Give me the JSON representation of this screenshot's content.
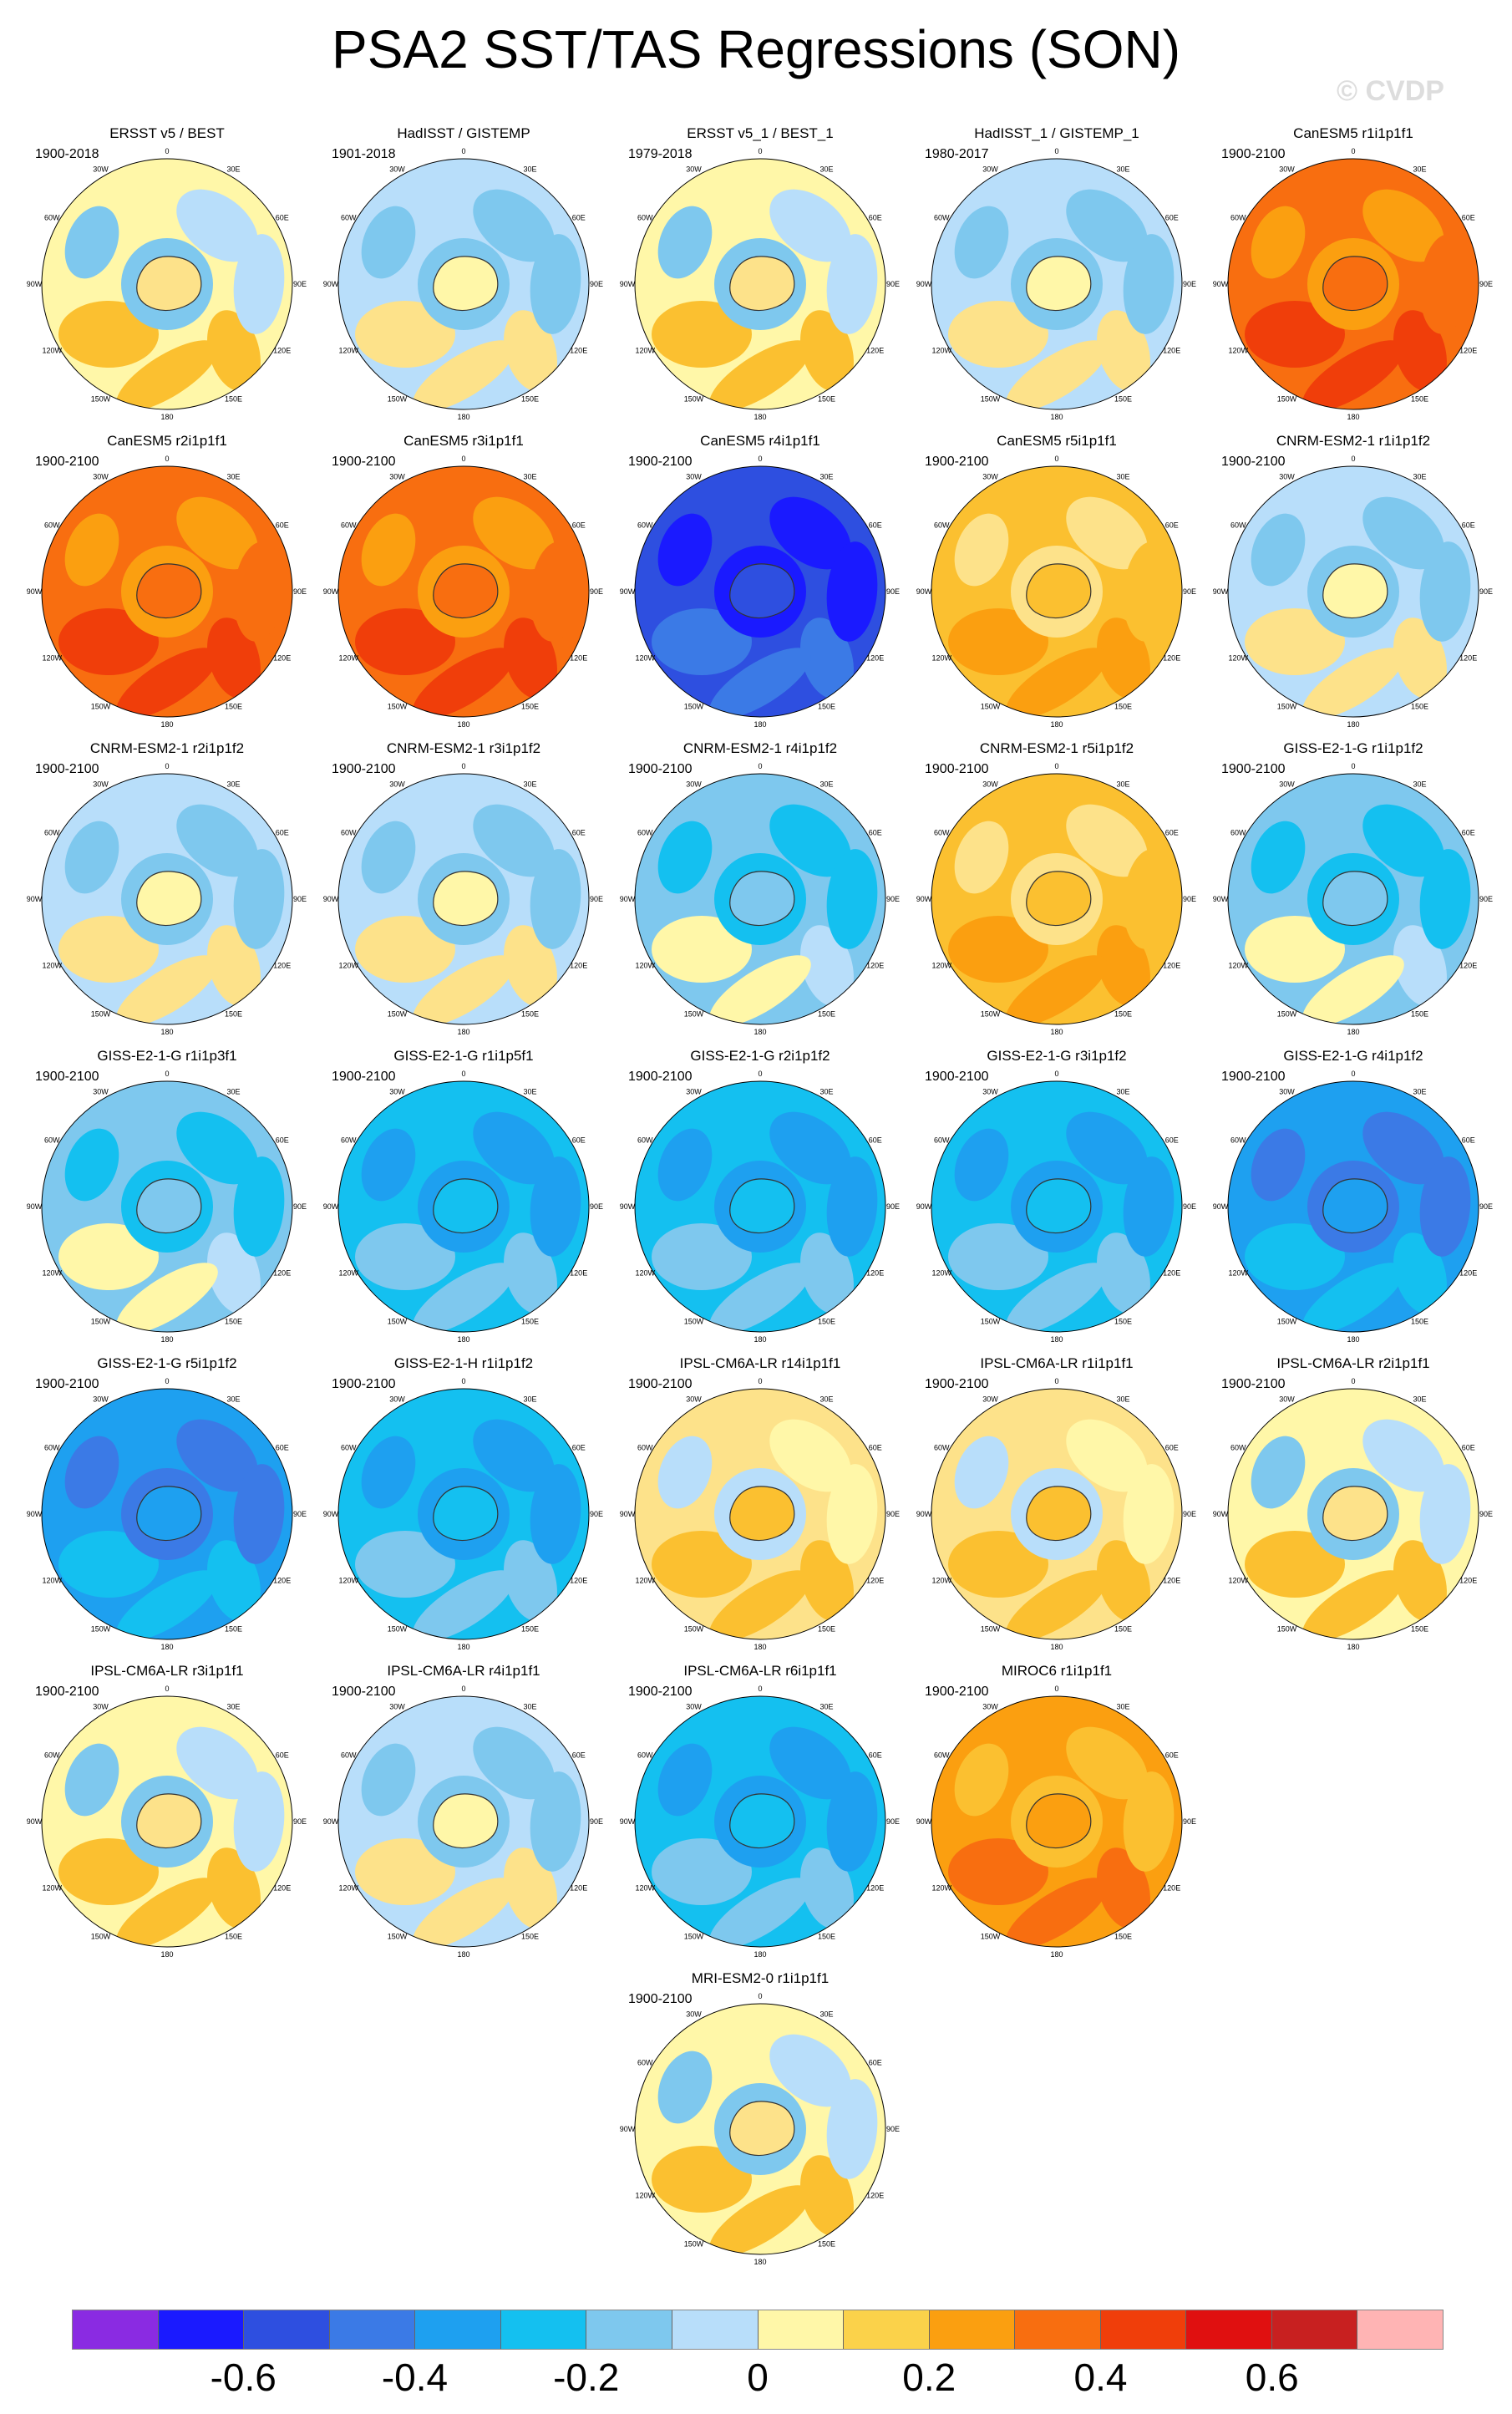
{
  "title": "PSA2 SST/TAS Regressions (SON)",
  "watermark": "© CVDP",
  "axis_labels": [
    "0",
    "30E",
    "60E",
    "90E",
    "120E",
    "150E",
    "180",
    "150W",
    "120W",
    "90W",
    "60W",
    "30W"
  ],
  "colors": {
    "-0.7": "#8a2be2",
    "-0.6": "#1a1aff",
    "-0.5": "#2e4fe0",
    "-0.4": "#3b7ae6",
    "-0.3": "#1ea0f0",
    "-0.2": "#14c0f0",
    "-0.1": "#7ec8ee",
    "0.0": "#b8defa",
    "0.05": "#fff7a8",
    "0.1": "#fde28a",
    "0.2": "#fbc030",
    "0.3": "#fb9f10",
    "0.4": "#f86e10",
    "0.5": "#f03e0a",
    "0.6": "#e01010",
    "0.7": "#c82020",
    "0.8": "#ffb4b4"
  },
  "panels": [
    {
      "title": "ERSST v5 / BEST",
      "years": "1900-2018",
      "value": 0.05
    },
    {
      "title": "HadISST / GISTEMP",
      "years": "1901-2018",
      "value": 0.0
    },
    {
      "title": "ERSST v5_1 / BEST_1",
      "years": "1979-2018",
      "value": 0.05
    },
    {
      "title": "HadISST_1 / GISTEMP_1",
      "years": "1980-2017",
      "value": 0.0
    },
    {
      "title": "CanESM5 r1i1p1f1",
      "years": "1900-2100",
      "value": 0.4
    },
    {
      "title": "CanESM5 r2i1p1f1",
      "years": "1900-2100",
      "value": 0.4
    },
    {
      "title": "CanESM5 r3i1p1f1",
      "years": "1900-2100",
      "value": 0.4
    },
    {
      "title": "CanESM5 r4i1p1f1",
      "years": "1900-2100",
      "value": -0.5
    },
    {
      "title": "CanESM5 r5i1p1f1",
      "years": "1900-2100",
      "value": 0.2
    },
    {
      "title": "CNRM-ESM2-1 r1i1p1f2",
      "years": "1900-2100",
      "value": 0.0
    },
    {
      "title": "CNRM-ESM2-1 r2i1p1f2",
      "years": "1900-2100",
      "value": 0.0
    },
    {
      "title": "CNRM-ESM2-1 r3i1p1f2",
      "years": "1900-2100",
      "value": 0.0
    },
    {
      "title": "CNRM-ESM2-1 r4i1p1f2",
      "years": "1900-2100",
      "value": -0.1
    },
    {
      "title": "CNRM-ESM2-1 r5i1p1f2",
      "years": "1900-2100",
      "value": 0.2
    },
    {
      "title": "GISS-E2-1-G r1i1p1f2",
      "years": "1900-2100",
      "value": -0.1
    },
    {
      "title": "GISS-E2-1-G r1i1p3f1",
      "years": "1900-2100",
      "value": -0.1
    },
    {
      "title": "GISS-E2-1-G r1i1p5f1",
      "years": "1900-2100",
      "value": -0.2
    },
    {
      "title": "GISS-E2-1-G r2i1p1f2",
      "years": "1900-2100",
      "value": -0.2
    },
    {
      "title": "GISS-E2-1-G r3i1p1f2",
      "years": "1900-2100",
      "value": -0.2
    },
    {
      "title": "GISS-E2-1-G r4i1p1f2",
      "years": "1900-2100",
      "value": -0.3
    },
    {
      "title": "GISS-E2-1-G r5i1p1f2",
      "years": "1900-2100",
      "value": -0.3
    },
    {
      "title": "GISS-E2-1-H r1i1p1f2",
      "years": "1900-2100",
      "value": -0.2
    },
    {
      "title": "IPSL-CM6A-LR r14i1p1f1",
      "years": "1900-2100",
      "value": 0.1
    },
    {
      "title": "IPSL-CM6A-LR r1i1p1f1",
      "years": "1900-2100",
      "value": 0.1
    },
    {
      "title": "IPSL-CM6A-LR r2i1p1f1",
      "years": "1900-2100",
      "value": 0.05
    },
    {
      "title": "IPSL-CM6A-LR r3i1p1f1",
      "years": "1900-2100",
      "value": 0.05
    },
    {
      "title": "IPSL-CM6A-LR r4i1p1f1",
      "years": "1900-2100",
      "value": 0.0
    },
    {
      "title": "IPSL-CM6A-LR r6i1p1f1",
      "years": "1900-2100",
      "value": -0.2
    },
    {
      "title": "MIROC6 r1i1p1f1",
      "years": "1900-2100",
      "value": 0.3
    },
    {
      "title": "MRI-ESM2-0 r1i1p1f1",
      "years": "1900-2100",
      "value": 0.05
    }
  ],
  "colorbar": {
    "colors": [
      "#8a2be2",
      "#1a1aff",
      "#2e4fe0",
      "#3b7ae6",
      "#1ea0f0",
      "#14c0f0",
      "#7ec8ee",
      "#b8defa",
      "#fff7a8",
      "#fbd24a",
      "#fb9f10",
      "#f86e10",
      "#f03e0a",
      "#e01010",
      "#c82020",
      "#ffb4b4"
    ],
    "labels": [
      "-0.6",
      "-0.4",
      "-0.2",
      "0",
      "0.2",
      "0.4",
      "0.6"
    ]
  }
}
